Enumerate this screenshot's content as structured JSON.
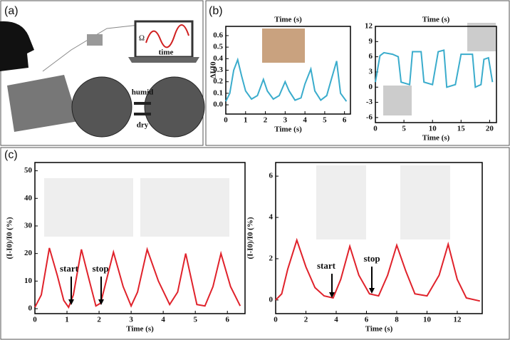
{
  "panels": [
    "(a)",
    "(b)",
    "(c)"
  ],
  "illustration": {
    "humid": "humid",
    "dry": "dry",
    "ohm": "Ω",
    "time": "time"
  },
  "chart_data": [
    {
      "type": "line",
      "top_label": "Time (s)",
      "x_label": "Time (s)",
      "y_label": "ΔI/I0",
      "x": [
        0,
        0.2,
        0.4,
        0.6,
        0.8,
        1.0,
        1.3,
        1.6,
        1.9,
        2.1,
        2.4,
        2.7,
        3.0,
        3.2,
        3.5,
        3.8,
        4.0,
        4.3,
        4.5,
        4.8,
        5.1,
        5.3,
        5.6,
        5.8,
        6.1
      ],
      "series": [
        {
          "color": "#3aaccc",
          "values": [
            0.03,
            0.1,
            0.3,
            0.39,
            0.25,
            0.12,
            0.05,
            0.08,
            0.22,
            0.12,
            0.05,
            0.08,
            0.2,
            0.12,
            0.04,
            0.06,
            0.18,
            0.31,
            0.12,
            0.04,
            0.08,
            0.2,
            0.38,
            0.1,
            0.03
          ]
        }
      ],
      "xlim": [
        0,
        6.3
      ],
      "ylim": [
        -0.08,
        0.68
      ],
      "xticks": [
        0,
        1,
        2,
        3,
        4,
        5,
        6
      ],
      "yticks": [
        {
          "value": 0,
          "label": "0.0"
        },
        0.1,
        0.2,
        0.3,
        0.4,
        0.5,
        0.6
      ]
    },
    {
      "type": "line",
      "top_label": "Time (s)",
      "x_label": "Time (s)",
      "x": [
        0,
        0.8,
        1.5,
        3,
        4,
        4.5,
        6,
        6.5,
        8,
        8.5,
        10,
        11,
        12,
        12.5,
        14,
        15,
        17,
        17.5,
        18.5,
        19,
        19.8,
        20.5
      ],
      "series": [
        {
          "color": "#3aaccc",
          "values": [
            1,
            6.2,
            6.8,
            6.5,
            6,
            1,
            0.5,
            7,
            7,
            1,
            0.5,
            7,
            7.3,
            0,
            0.5,
            6.5,
            6.5,
            0,
            0.5,
            5.5,
            5.8,
            1
          ]
        }
      ],
      "xlim": [
        0,
        21.2
      ],
      "ylim": [
        -7,
        12
      ],
      "xticks": [
        0,
        5,
        10,
        15,
        20
      ],
      "yticks": [
        -6,
        -3,
        0,
        3,
        6,
        9,
        12
      ]
    },
    {
      "type": "line",
      "x_label": "Time (s)",
      "y_label": "(I-I0)/I0 (%)",
      "x": [
        0,
        0.2,
        0.45,
        0.7,
        0.9,
        1.05,
        1.2,
        1.45,
        1.7,
        1.9,
        2.05,
        2.2,
        2.45,
        2.75,
        3.0,
        3.2,
        3.5,
        3.85,
        4.2,
        4.45,
        4.7,
        5.05,
        5.3,
        5.55,
        5.8,
        6.1,
        6.4
      ],
      "series": [
        {
          "color": "#e0222b",
          "values": [
            0.5,
            5,
            22,
            12,
            3,
            0.5,
            5,
            21.5,
            10,
            1,
            2,
            9,
            20.5,
            8,
            1,
            6,
            21.5,
            10,
            1.5,
            6,
            20,
            1.5,
            1,
            8,
            20,
            8,
            1
          ]
        }
      ],
      "xlim": [
        0,
        6.55
      ],
      "ylim": [
        -1.8,
        53
      ],
      "xticks": [
        0,
        1,
        2,
        3,
        4,
        5,
        6
      ],
      "yticks": [
        0,
        10,
        20,
        30,
        40,
        50
      ],
      "annotations": [
        "start",
        "stop"
      ]
    },
    {
      "type": "line",
      "x_label": "Time (s)",
      "y_label": "(I-I0)/I0 (%)",
      "x": [
        0,
        0.4,
        0.8,
        1.4,
        2,
        2.6,
        3.2,
        3.8,
        4.3,
        4.9,
        5.5,
        6.2,
        6.8,
        7.4,
        8,
        8.6,
        9.2,
        10,
        10.8,
        11.4,
        12,
        12.6,
        13.5
      ],
      "series": [
        {
          "color": "#e0222b",
          "values": [
            0,
            0.3,
            1.5,
            2.9,
            1.6,
            0.6,
            0.2,
            0.1,
            1.0,
            2.6,
            1.2,
            0.3,
            0.2,
            1.2,
            2.65,
            1.4,
            0.3,
            0.2,
            1.2,
            2.7,
            1.0,
            0.1,
            -0.05
          ]
        }
      ],
      "xlim": [
        0,
        13.65
      ],
      "ylim": [
        -0.66,
        6.66
      ],
      "xticks": [
        0,
        2,
        4,
        6,
        8,
        10,
        12
      ],
      "yticks": [
        0,
        2,
        4,
        6
      ],
      "annotations": [
        "start",
        "stop"
      ]
    }
  ]
}
